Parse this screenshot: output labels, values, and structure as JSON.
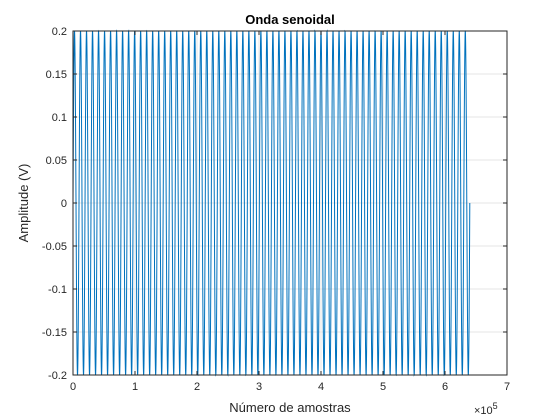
{
  "chart_data": {
    "type": "line",
    "title": "Onda senoidal",
    "xlabel": "Número de amostras",
    "ylabel": "Amplitude (V)",
    "xlim": [
      0,
      7
    ],
    "ylim": [
      -0.2,
      0.2
    ],
    "x_exponent_label": "×10",
    "x_exponent_power": "5",
    "xticks": [
      0,
      1,
      2,
      3,
      4,
      5,
      6,
      7
    ],
    "xtick_labels": [
      "0",
      "1",
      "2",
      "3",
      "4",
      "5",
      "6",
      "7"
    ],
    "yticks": [
      -0.2,
      -0.15,
      -0.1,
      -0.05,
      0,
      0.05,
      0.1,
      0.15,
      0.2
    ],
    "ytick_labels": [
      "-0.2",
      "-0.15",
      "-0.1",
      "-0.05",
      "0",
      "0.05",
      "0.1",
      "0.15",
      "0.2"
    ],
    "grid": true,
    "series": [
      {
        "color": "#0072BD",
        "amplitude": 0.2,
        "cycles": 66,
        "x_start": 0,
        "x_end": 6.4
      }
    ]
  }
}
